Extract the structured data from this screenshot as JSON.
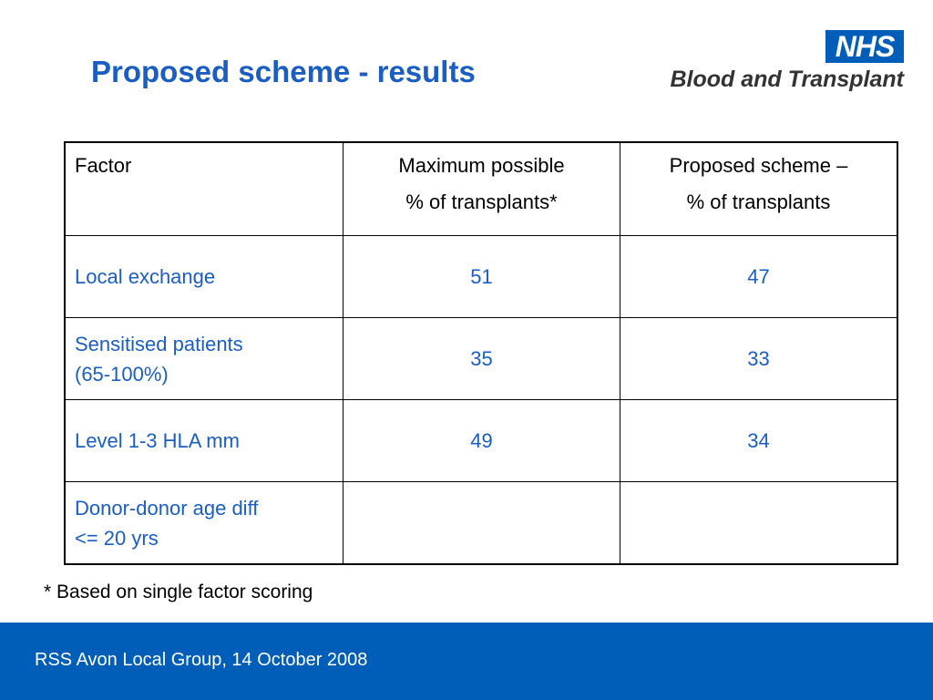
{
  "slide": {
    "title": "Proposed scheme - results"
  },
  "logo": {
    "badge": "NHS",
    "name": "Blood and Transplant"
  },
  "table": {
    "headers": [
      {
        "line1": "Factor",
        "line2": ""
      },
      {
        "line1": "Maximum possible",
        "line2": "% of transplants*"
      },
      {
        "line1": "Proposed scheme –",
        "line2": "% of transplants"
      }
    ],
    "rows": [
      {
        "factor_line1": "Local exchange",
        "factor_line2": "",
        "max": "51",
        "proposed": "47"
      },
      {
        "factor_line1": "Sensitised patients",
        "factor_line2": "(65-100%)",
        "max": "35",
        "proposed": "33"
      },
      {
        "factor_line1": "Level 1-3 HLA mm",
        "factor_line2": "",
        "max": "49",
        "proposed": "34"
      },
      {
        "factor_line1": "Donor-donor age diff",
        "factor_line2": "<= 20 yrs",
        "max": "",
        "proposed": ""
      }
    ]
  },
  "footnote": "* Based on single factor scoring",
  "footer": {
    "text": "RSS Avon Local Group, 14 October 2008",
    "color": "#005eb8"
  },
  "colors": {
    "title": "#1a5ec4",
    "table_text": "#1a5ec4",
    "nhs_blue": "#005eb8"
  }
}
